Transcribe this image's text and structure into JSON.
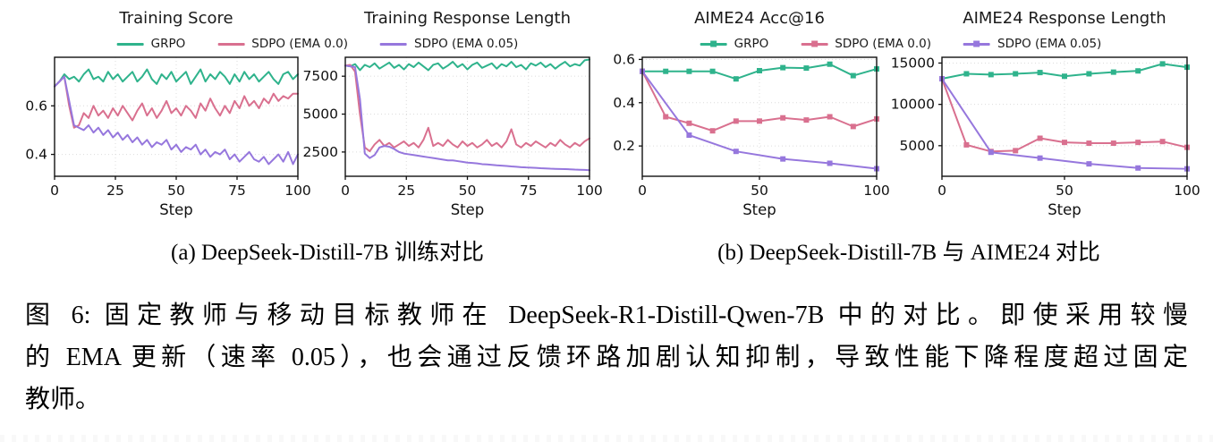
{
  "figure": {
    "subcaption_a": "(a) DeepSeek-Distill-7B 训练对比",
    "subcaption_b": "(b) DeepSeek-Distill-7B 与 AIME24 对比",
    "caption": {
      "line1": "图 6: 固定教师与移动目标教师在 DeepSeek-R1-Distill-Qwen-7B 中的对比。即使采用较慢",
      "line2": "的 EMA 更新（速率 0.05），也会通过反馈环路加剧认知抑制，导致性能下降程度超过固定",
      "line3": "教师。"
    },
    "colors": {
      "green": "#2fb38c",
      "pink": "#d9708f",
      "purple": "#9677dd",
      "grid": "#dcdcdc",
      "axis": "#111111"
    },
    "legends": [
      {
        "marker": "line",
        "items": [
          {
            "label": "GRPO",
            "color": "green"
          },
          {
            "label": "SDPO (EMA 0.0)",
            "color": "pink"
          },
          {
            "label": "SDPO (EMA 0.05)",
            "color": "purple"
          }
        ]
      },
      {
        "marker": "line-square",
        "items": [
          {
            "label": "GRPO",
            "color": "green"
          },
          {
            "label": "SDPO (EMA 0.0)",
            "color": "pink"
          },
          {
            "label": "SDPO (EMA 0.05)",
            "color": "purple"
          }
        ]
      }
    ]
  },
  "chart_data": [
    {
      "type": "line",
      "title": "Training Score",
      "xlabel": "Step",
      "xlim": [
        0,
        100
      ],
      "xticks": [
        0,
        25,
        50,
        75,
        100
      ],
      "grid_x": [
        25,
        50,
        75
      ],
      "ylim": [
        0.31,
        0.8
      ],
      "yticks": [
        0.6,
        0.4
      ],
      "ytick_labels": [
        "0.6",
        "0.4"
      ],
      "marker": null,
      "x": [
        0,
        2,
        4,
        6,
        8,
        10,
        12,
        14,
        16,
        18,
        20,
        22,
        24,
        26,
        28,
        30,
        32,
        34,
        36,
        38,
        40,
        42,
        44,
        46,
        48,
        50,
        52,
        54,
        56,
        58,
        60,
        62,
        64,
        66,
        68,
        70,
        72,
        74,
        76,
        78,
        80,
        82,
        84,
        86,
        88,
        90,
        92,
        94,
        96,
        98,
        100
      ],
      "series": [
        {
          "name": "GRPO",
          "color": "green",
          "values": [
            0.68,
            0.7,
            0.73,
            0.71,
            0.72,
            0.7,
            0.73,
            0.75,
            0.71,
            0.72,
            0.7,
            0.74,
            0.71,
            0.73,
            0.7,
            0.72,
            0.74,
            0.7,
            0.72,
            0.75,
            0.71,
            0.69,
            0.73,
            0.71,
            0.74,
            0.7,
            0.72,
            0.74,
            0.69,
            0.72,
            0.75,
            0.7,
            0.73,
            0.71,
            0.74,
            0.72,
            0.69,
            0.73,
            0.7,
            0.74,
            0.71,
            0.73,
            0.7,
            0.72,
            0.74,
            0.71,
            0.69,
            0.73,
            0.74,
            0.71,
            0.73
          ]
        },
        {
          "name": "SDPO (EMA 0.0)",
          "color": "pink",
          "values": [
            0.68,
            0.7,
            0.72,
            0.6,
            0.51,
            0.52,
            0.57,
            0.55,
            0.6,
            0.56,
            0.58,
            0.55,
            0.59,
            0.56,
            0.6,
            0.57,
            0.54,
            0.58,
            0.61,
            0.56,
            0.59,
            0.55,
            0.58,
            0.62,
            0.57,
            0.59,
            0.56,
            0.6,
            0.58,
            0.55,
            0.61,
            0.58,
            0.63,
            0.59,
            0.56,
            0.6,
            0.57,
            0.62,
            0.59,
            0.64,
            0.6,
            0.62,
            0.59,
            0.63,
            0.61,
            0.65,
            0.62,
            0.64,
            0.63,
            0.65,
            0.65
          ]
        },
        {
          "name": "SDPO (EMA 0.05)",
          "color": "purple",
          "values": [
            0.68,
            0.7,
            0.72,
            0.62,
            0.52,
            0.51,
            0.5,
            0.52,
            0.49,
            0.51,
            0.48,
            0.5,
            0.47,
            0.49,
            0.46,
            0.48,
            0.45,
            0.47,
            0.44,
            0.46,
            0.43,
            0.45,
            0.44,
            0.46,
            0.42,
            0.44,
            0.41,
            0.43,
            0.42,
            0.44,
            0.4,
            0.42,
            0.39,
            0.41,
            0.4,
            0.42,
            0.38,
            0.4,
            0.37,
            0.39,
            0.41,
            0.38,
            0.37,
            0.39,
            0.36,
            0.38,
            0.4,
            0.37,
            0.41,
            0.36,
            0.4
          ]
        }
      ]
    },
    {
      "type": "line",
      "title": "Training Response Length",
      "xlabel": "Step",
      "xlim": [
        0,
        100
      ],
      "xticks": [
        0,
        25,
        50,
        75,
        100
      ],
      "grid_x": [
        25,
        50,
        75
      ],
      "ylim": [
        900,
        8750
      ],
      "yticks": [
        7500,
        5000,
        2500
      ],
      "ytick_labels": [
        "7500",
        "5000",
        "2500"
      ],
      "marker": null,
      "x": [
        0,
        2,
        4,
        6,
        8,
        10,
        12,
        14,
        16,
        18,
        20,
        22,
        24,
        26,
        28,
        30,
        32,
        34,
        36,
        38,
        40,
        42,
        44,
        46,
        48,
        50,
        52,
        54,
        56,
        58,
        60,
        62,
        64,
        66,
        68,
        70,
        72,
        74,
        76,
        78,
        80,
        82,
        84,
        86,
        88,
        90,
        92,
        94,
        96,
        98,
        100
      ],
      "series": [
        {
          "name": "GRPO",
          "color": "green",
          "values": [
            8200,
            8150,
            8300,
            7900,
            8250,
            8100,
            8350,
            8000,
            8200,
            8400,
            8050,
            8250,
            7950,
            8300,
            8100,
            8400,
            8150,
            7900,
            8250,
            8350,
            8000,
            8200,
            8450,
            8100,
            8300,
            7950,
            8250,
            8400,
            8050,
            8200,
            8350,
            8000,
            8300,
            8150,
            8450,
            8100,
            8250,
            7950,
            8350,
            8200,
            8400,
            8100,
            8300,
            8000,
            8250,
            8450,
            8150,
            8300,
            8200,
            8550,
            8600
          ]
        },
        {
          "name": "SDPO (EMA 0.0)",
          "color": "pink",
          "values": [
            8200,
            8250,
            7800,
            5000,
            2800,
            2550,
            3000,
            3300,
            2900,
            3100,
            2800,
            3000,
            3200,
            2900,
            3100,
            2800,
            3300,
            4100,
            2900,
            3100,
            2900,
            3300,
            3000,
            2800,
            3200,
            2900,
            3100,
            2800,
            3000,
            3300,
            2900,
            3100,
            2800,
            3200,
            4000,
            3000,
            2800,
            3100,
            2900,
            3200,
            3000,
            2800,
            3100,
            2900,
            3300,
            3000,
            2800,
            3100,
            2900,
            3200,
            3400
          ]
        },
        {
          "name": "SDPO (EMA 0.05)",
          "color": "purple",
          "values": [
            8200,
            8150,
            8100,
            6000,
            2400,
            2100,
            2300,
            2800,
            2900,
            2850,
            2700,
            2500,
            2400,
            2350,
            2300,
            2250,
            2200,
            2150,
            2100,
            2050,
            2000,
            1950,
            1950,
            1900,
            1850,
            1800,
            1780,
            1750,
            1700,
            1680,
            1650,
            1620,
            1600,
            1580,
            1550,
            1530,
            1500,
            1480,
            1470,
            1450,
            1430,
            1420,
            1400,
            1390,
            1380,
            1370,
            1360,
            1340,
            1330,
            1320,
            1300
          ]
        }
      ]
    },
    {
      "type": "line",
      "title": "AIME24 Acc@16",
      "xlabel": "Step",
      "xlim": [
        0,
        100
      ],
      "xticks": [
        0,
        50,
        100
      ],
      "grid_x": [
        50
      ],
      "ylim": [
        0.06,
        0.61
      ],
      "yticks": [
        0.6,
        0.4,
        0.2
      ],
      "ytick_labels": [
        "0.6",
        "0.4",
        "0.2"
      ],
      "marker": "square",
      "x": [
        0,
        10,
        20,
        30,
        40,
        50,
        60,
        70,
        80,
        90,
        100
      ],
      "series": [
        {
          "name": "GRPO",
          "color": "green",
          "values": [
            0.545,
            0.545,
            0.545,
            0.545,
            0.51,
            0.548,
            0.562,
            0.56,
            0.578,
            0.525,
            0.556
          ]
        },
        {
          "name": "SDPO (EMA 0.0)",
          "color": "pink",
          "values": [
            0.545,
            0.335,
            0.305,
            0.27,
            0.315,
            0.315,
            0.33,
            0.32,
            0.335,
            0.29,
            0.325
          ]
        },
        {
          "name": "SDPO (EMA 0.05)",
          "color": "purple",
          "x": [
            0,
            20,
            40,
            60,
            80,
            100
          ],
          "values": [
            0.545,
            0.25,
            0.175,
            0.14,
            0.12,
            0.095
          ]
        }
      ]
    },
    {
      "type": "line",
      "title": "AIME24 Response Length",
      "xlabel": "Step",
      "xlim": [
        0,
        100
      ],
      "xticks": [
        0,
        50,
        100
      ],
      "grid_x": [
        50
      ],
      "ylim": [
        1300,
        15700
      ],
      "yticks": [
        15000,
        10000,
        5000
      ],
      "ytick_labels": [
        "15000",
        "10000",
        "5000"
      ],
      "marker": "square",
      "x": [
        0,
        10,
        20,
        30,
        40,
        50,
        60,
        70,
        80,
        90,
        100
      ],
      "series": [
        {
          "name": "GRPO",
          "color": "green",
          "values": [
            13100,
            13700,
            13600,
            13700,
            13850,
            13400,
            13700,
            13900,
            14050,
            14900,
            14500
          ]
        },
        {
          "name": "SDPO (EMA 0.0)",
          "color": "pink",
          "values": [
            13100,
            5100,
            4300,
            4400,
            5900,
            5400,
            5300,
            5300,
            5400,
            5500,
            4800
          ]
        },
        {
          "name": "SDPO (EMA 0.05)",
          "color": "purple",
          "x": [
            0,
            20,
            40,
            60,
            80,
            100
          ],
          "values": [
            13100,
            4200,
            3500,
            2800,
            2300,
            2200
          ]
        }
      ]
    }
  ]
}
